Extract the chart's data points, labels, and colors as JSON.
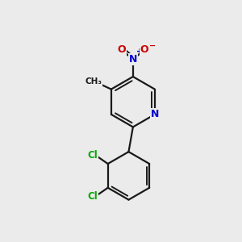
{
  "background_color": "#ebebeb",
  "bond_color": "#1a1a1a",
  "atom_colors": {
    "N_pyridine": "#0000cc",
    "N_nitro": "#0000cc",
    "O": "#cc0000",
    "Cl": "#00aa00",
    "C": "#1a1a1a"
  },
  "figsize": [
    3.0,
    3.0
  ],
  "dpi": 100,
  "xlim": [
    0,
    10
  ],
  "ylim": [
    0,
    10
  ]
}
